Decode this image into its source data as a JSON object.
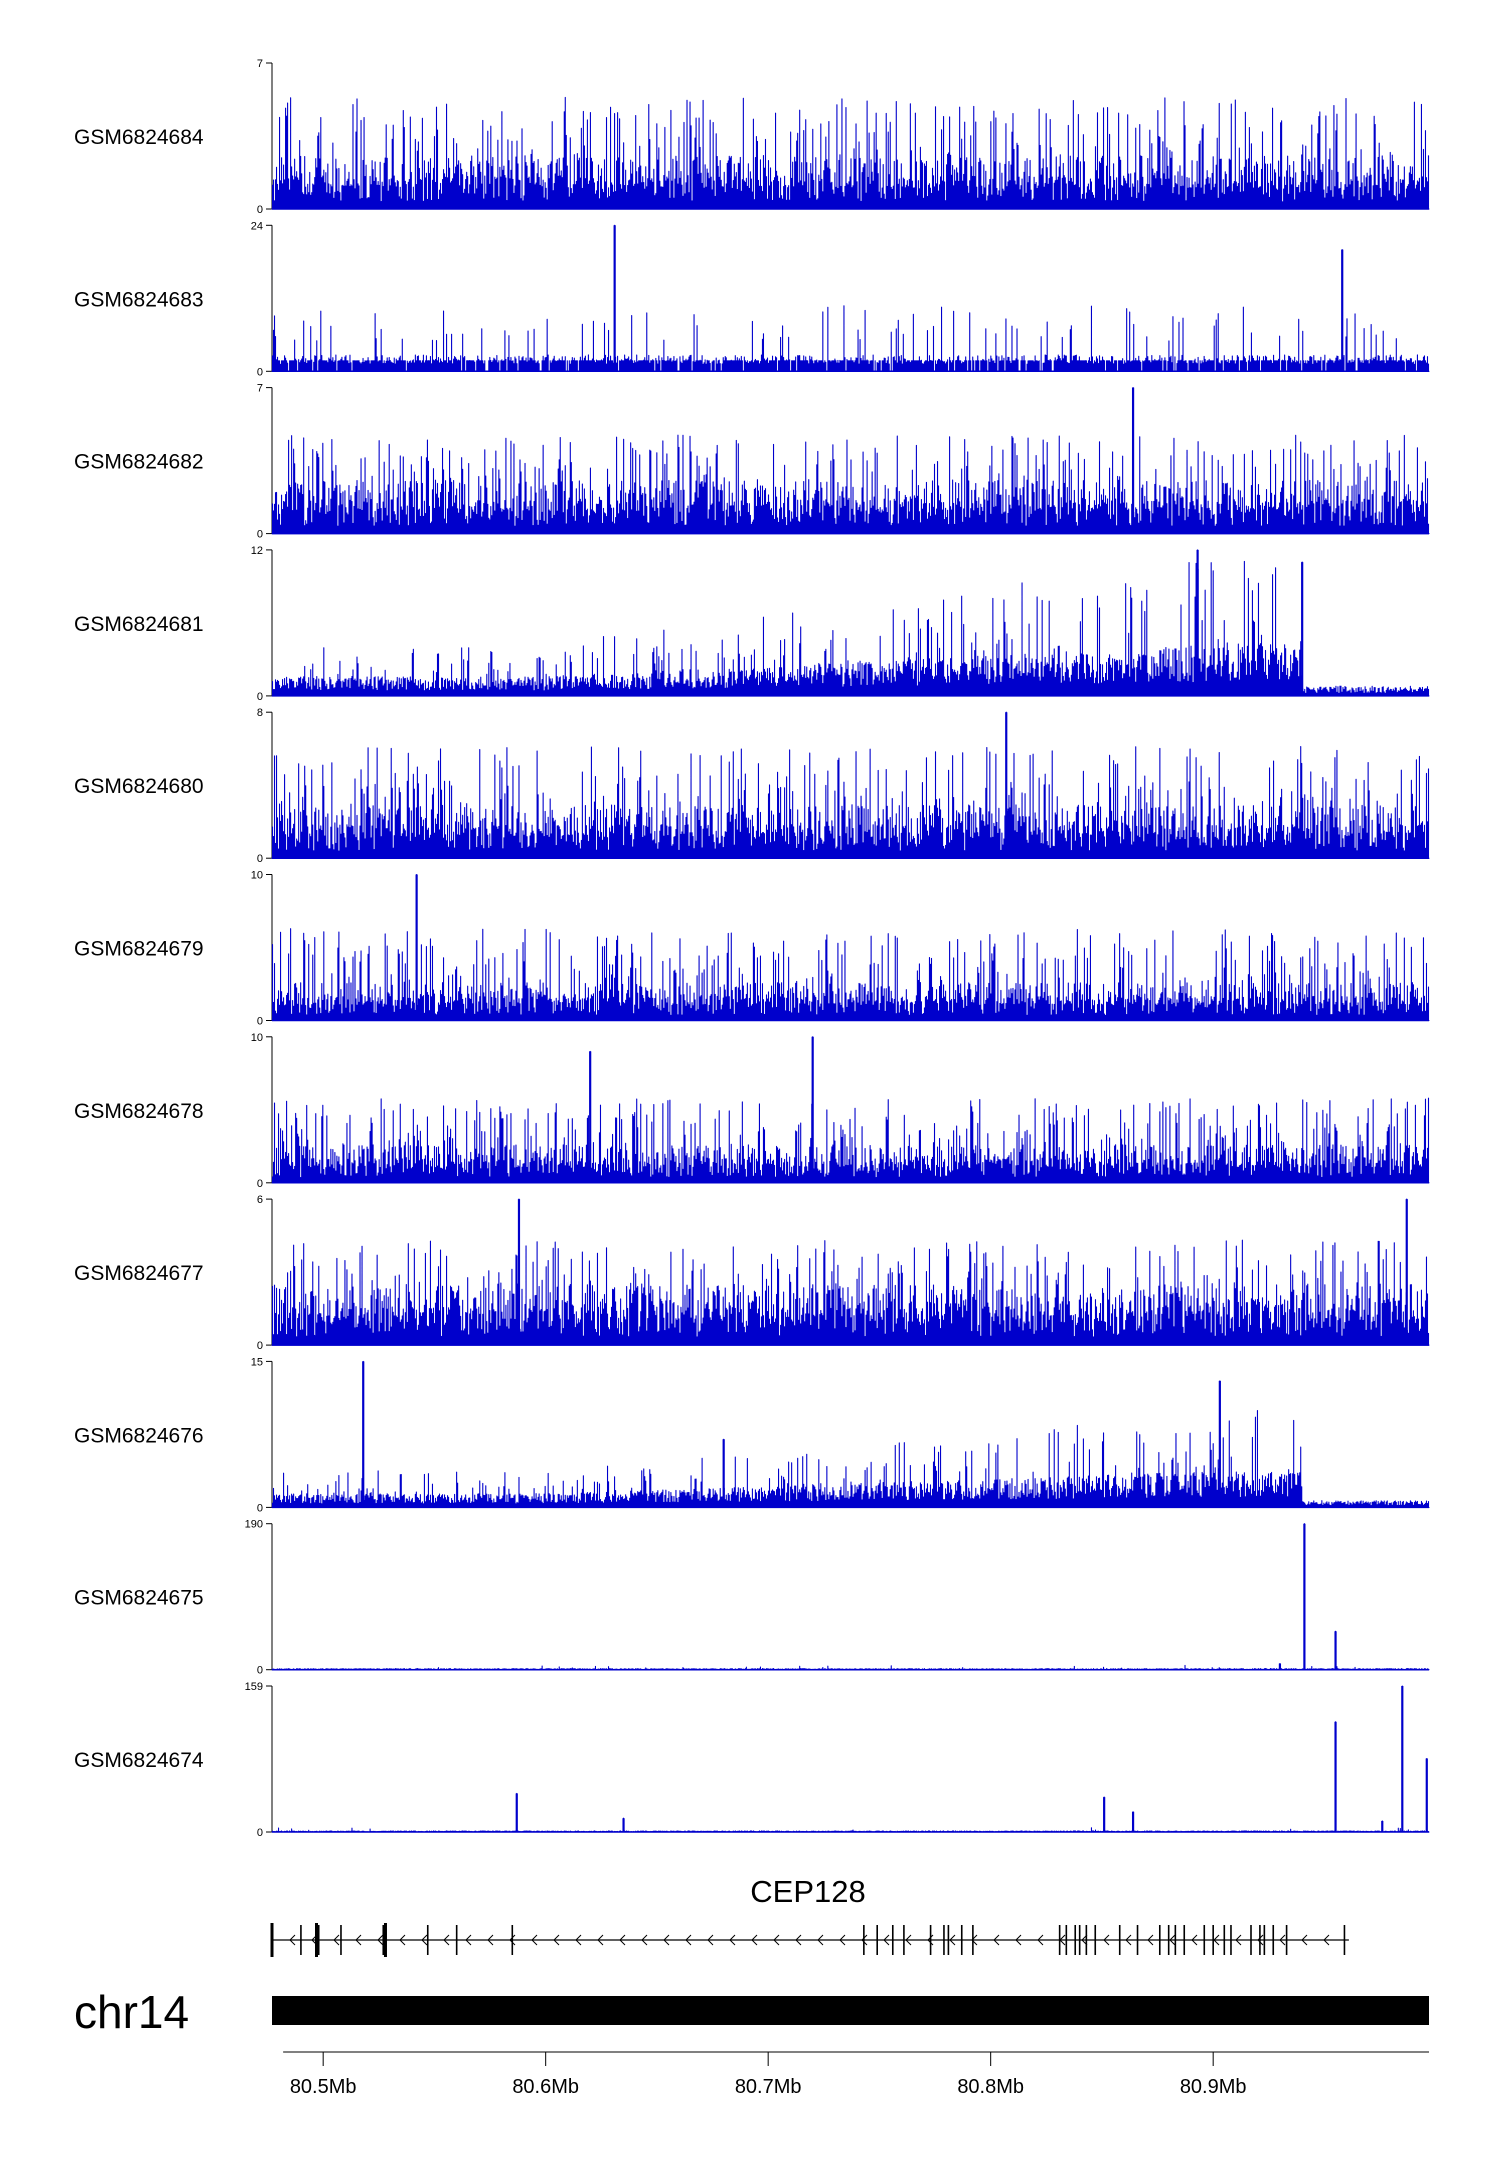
{
  "chart_data": {
    "type": "area",
    "title": "",
    "chromosome": "chr14",
    "gene": "CEP128",
    "xlim": [
      80.477,
      80.997
    ],
    "x_unit": "Mb",
    "x_ticks": [
      {
        "value": 80.5,
        "label": "80.5Mb"
      },
      {
        "value": 80.6,
        "label": "80.6Mb"
      },
      {
        "value": 80.7,
        "label": "80.7Mb"
      },
      {
        "value": 80.8,
        "label": "80.8Mb"
      },
      {
        "value": 80.9,
        "label": "80.9Mb"
      }
    ],
    "colors": {
      "signal": "#0000cc",
      "signal_light": "#3a3aff",
      "axis": "#000000",
      "ideogram": "#000000"
    },
    "tracks": [
      {
        "name": "GSM6824684",
        "ymax": 7,
        "ymin_label": "0",
        "ymax_label": "7",
        "pattern": "uniform",
        "base": 0.14,
        "peak": 0.85
      },
      {
        "name": "GSM6824683",
        "ymax": 24,
        "ymin_label": "0",
        "ymax_label": "24",
        "pattern": "spiky-gaps",
        "base": 0.08,
        "peak": 0.45,
        "highlights": [
          {
            "x": 80.631,
            "y": 24
          },
          {
            "x": 80.958,
            "y": 20
          }
        ]
      },
      {
        "name": "GSM6824682",
        "ymax": 7,
        "ymin_label": "0",
        "ymax_label": "7",
        "pattern": "uniform",
        "base": 0.14,
        "peak": 0.75,
        "highlights": [
          {
            "x": 80.864,
            "y": 7
          }
        ]
      },
      {
        "name": "GSM6824681",
        "ymax": 12,
        "ymin_label": "0",
        "ymax_label": "12",
        "pattern": "rising-dropoff",
        "base": 0.1,
        "peak": 0.6,
        "dropoff": 80.94,
        "highlights": [
          {
            "x": 80.893,
            "y": 12
          },
          {
            "x": 80.94,
            "y": 11
          }
        ]
      },
      {
        "name": "GSM6824680",
        "ymax": 8,
        "ymin_label": "0",
        "ymax_label": "8",
        "pattern": "uniform",
        "base": 0.14,
        "peak": 0.85,
        "highlights": [
          {
            "x": 80.807,
            "y": 8
          }
        ]
      },
      {
        "name": "GSM6824679",
        "ymax": 10,
        "ymin_label": "0",
        "ymax_label": "10",
        "pattern": "uniform",
        "base": 0.1,
        "peak": 0.7,
        "highlights": [
          {
            "x": 80.542,
            "y": 10
          }
        ]
      },
      {
        "name": "GSM6824678",
        "ymax": 10,
        "ymin_label": "0",
        "ymax_label": "10",
        "pattern": "uniform",
        "base": 0.1,
        "peak": 0.65,
        "highlights": [
          {
            "x": 80.62,
            "y": 9
          },
          {
            "x": 80.72,
            "y": 10
          }
        ]
      },
      {
        "name": "GSM6824677",
        "ymax": 6,
        "ymin_label": "0",
        "ymax_label": "6",
        "pattern": "uniform",
        "base": 0.16,
        "peak": 0.8,
        "highlights": [
          {
            "x": 80.588,
            "y": 6
          },
          {
            "x": 80.987,
            "y": 6
          }
        ]
      },
      {
        "name": "GSM6824676",
        "ymax": 15,
        "ymin_label": "0",
        "ymax_label": "15",
        "pattern": "rising-dropoff",
        "base": 0.07,
        "peak": 0.42,
        "dropoff": 80.94,
        "highlights": [
          {
            "x": 80.518,
            "y": 15
          },
          {
            "x": 80.68,
            "y": 7
          },
          {
            "x": 80.903,
            "y": 13
          }
        ]
      },
      {
        "name": "GSM6824675",
        "ymax": 190,
        "ymin_label": "0",
        "ymax_label": "190",
        "pattern": "flat-peaks",
        "base": 0.005,
        "peak": 0.02,
        "highlights": [
          {
            "x": 80.941,
            "y": 190
          },
          {
            "x": 80.955,
            "y": 50
          },
          {
            "x": 80.93,
            "y": 8
          }
        ]
      },
      {
        "name": "GSM6824674",
        "ymax": 159,
        "ymin_label": "0",
        "ymax_label": "159",
        "pattern": "flat-peaks",
        "base": 0.005,
        "peak": 0.02,
        "highlights": [
          {
            "x": 80.587,
            "y": 42
          },
          {
            "x": 80.635,
            "y": 15
          },
          {
            "x": 80.851,
            "y": 38
          },
          {
            "x": 80.864,
            "y": 22
          },
          {
            "x": 80.955,
            "y": 120
          },
          {
            "x": 80.985,
            "y": 159
          },
          {
            "x": 80.996,
            "y": 80
          },
          {
            "x": 80.976,
            "y": 12
          }
        ]
      }
    ],
    "gene_model": {
      "name": "CEP128",
      "start": 80.477,
      "end": 80.961,
      "strand": "-",
      "exons": [
        80.477,
        80.49,
        80.497,
        80.498,
        80.508,
        80.527,
        80.528,
        80.547,
        80.56,
        80.585,
        80.743,
        80.749,
        80.756,
        80.761,
        80.773,
        80.779,
        80.781,
        80.787,
        80.792,
        80.831,
        80.834,
        80.838,
        80.84,
        80.843,
        80.847,
        80.858,
        80.866,
        80.876,
        80.88,
        80.883,
        80.887,
        80.896,
        80.9,
        80.905,
        80.908,
        80.917,
        80.921,
        80.923,
        80.927,
        80.933,
        80.959
      ]
    }
  }
}
